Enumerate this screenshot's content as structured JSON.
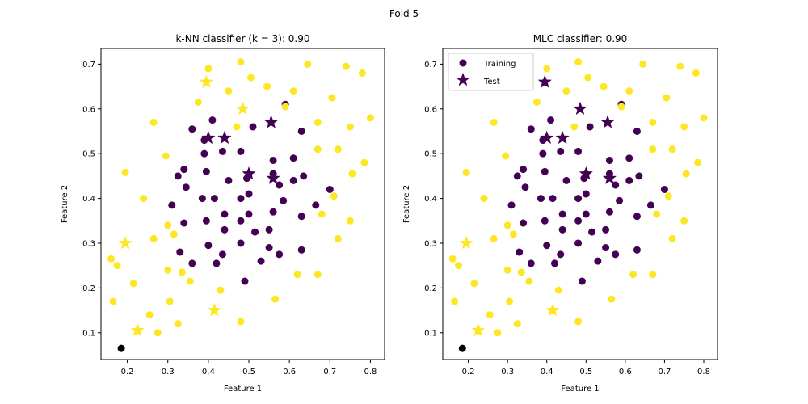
{
  "suptitle": "Fold 5",
  "colors": {
    "class0": "#440154",
    "class1": "#fde725"
  },
  "chart_data": [
    {
      "type": "scatter",
      "title": "k-NN classifier (k = 3): 0.90",
      "xlabel": "Feature 1",
      "ylabel": "Feature 2",
      "xlim": [
        0.135,
        0.835
      ],
      "ylim": [
        0.04,
        0.735
      ],
      "xticks": [
        "0.2",
        "0.3",
        "0.4",
        "0.5",
        "0.6",
        "0.7",
        "0.8"
      ],
      "yticks": [
        "0.1",
        "0.2",
        "0.3",
        "0.4",
        "0.5",
        "0.6",
        "0.7"
      ],
      "legend": null,
      "series": [
        {
          "name": "Training",
          "marker": "circle",
          "points": [
            [
              0.36,
              0.555
            ],
            [
              0.41,
              0.575
            ],
            [
              0.39,
              0.53
            ],
            [
              0.435,
              0.505
            ],
            [
              0.48,
              0.505
            ],
            [
              0.39,
              0.5
            ],
            [
              0.34,
              0.465
            ],
            [
              0.325,
              0.45
            ],
            [
              0.395,
              0.46
            ],
            [
              0.45,
              0.44
            ],
            [
              0.495,
              0.445
            ],
            [
              0.345,
              0.425
            ],
            [
              0.385,
              0.4
            ],
            [
              0.415,
              0.4
            ],
            [
              0.48,
              0.4
            ],
            [
              0.5,
              0.41
            ],
            [
              0.31,
              0.385
            ],
            [
              0.44,
              0.365
            ],
            [
              0.44,
              0.33
            ],
            [
              0.34,
              0.345
            ],
            [
              0.395,
              0.35
            ],
            [
              0.48,
              0.35
            ],
            [
              0.5,
              0.365
            ],
            [
              0.515,
              0.325
            ],
            [
              0.4,
              0.295
            ],
            [
              0.48,
              0.3
            ],
            [
              0.33,
              0.28
            ],
            [
              0.435,
              0.275
            ],
            [
              0.36,
              0.255
            ],
            [
              0.42,
              0.255
            ],
            [
              0.53,
              0.26
            ],
            [
              0.55,
              0.29
            ],
            [
              0.575,
              0.275
            ],
            [
              0.55,
              0.33
            ],
            [
              0.56,
              0.37
            ],
            [
              0.585,
              0.395
            ],
            [
              0.51,
              0.56
            ],
            [
              0.56,
              0.485
            ],
            [
              0.61,
              0.49
            ],
            [
              0.56,
              0.455
            ],
            [
              0.61,
              0.44
            ],
            [
              0.575,
              0.43
            ],
            [
              0.635,
              0.45
            ],
            [
              0.63,
              0.55
            ],
            [
              0.665,
              0.385
            ],
            [
              0.63,
              0.36
            ],
            [
              0.7,
              0.42
            ],
            [
              0.63,
              0.285
            ],
            [
              0.49,
              0.215
            ],
            [
              0.59,
              0.61
            ],
            [
              0.48,
              0.705
            ],
            [
              0.4,
              0.69
            ],
            [
              0.45,
              0.64
            ],
            [
              0.505,
              0.67
            ],
            [
              0.545,
              0.65
            ],
            [
              0.61,
              0.64
            ],
            [
              0.645,
              0.7
            ],
            [
              0.74,
              0.695
            ],
            [
              0.78,
              0.68
            ],
            [
              0.375,
              0.615
            ],
            [
              0.47,
              0.56
            ],
            [
              0.59,
              0.605
            ],
            [
              0.67,
              0.57
            ],
            [
              0.705,
              0.625
            ],
            [
              0.75,
              0.56
            ],
            [
              0.8,
              0.58
            ],
            [
              0.265,
              0.57
            ],
            [
              0.67,
              0.51
            ],
            [
              0.72,
              0.51
            ],
            [
              0.755,
              0.455
            ],
            [
              0.785,
              0.48
            ],
            [
              0.295,
              0.495
            ],
            [
              0.195,
              0.458
            ],
            [
              0.24,
              0.4
            ],
            [
              0.71,
              0.405
            ],
            [
              0.68,
              0.365
            ],
            [
              0.75,
              0.35
            ],
            [
              0.3,
              0.34
            ],
            [
              0.265,
              0.31
            ],
            [
              0.315,
              0.32
            ],
            [
              0.72,
              0.31
            ],
            [
              0.175,
              0.25
            ],
            [
              0.16,
              0.265
            ],
            [
              0.3,
              0.24
            ],
            [
              0.335,
              0.235
            ],
            [
              0.67,
              0.23
            ],
            [
              0.215,
              0.21
            ],
            [
              0.355,
              0.215
            ],
            [
              0.62,
              0.23
            ],
            [
              0.165,
              0.17
            ],
            [
              0.305,
              0.17
            ],
            [
              0.43,
              0.195
            ],
            [
              0.565,
              0.175
            ],
            [
              0.255,
              0.14
            ],
            [
              0.325,
              0.12
            ],
            [
              0.48,
              0.125
            ],
            [
              0.275,
              0.1
            ],
            [
              0.185,
              0.065
            ]
          ],
          "labels": [
            0,
            0,
            0,
            0,
            0,
            0,
            0,
            0,
            0,
            0,
            0,
            0,
            0,
            0,
            0,
            0,
            0,
            0,
            0,
            0,
            0,
            0,
            0,
            0,
            0,
            0,
            0,
            0,
            0,
            0,
            0,
            0,
            0,
            0,
            0,
            0,
            0,
            0,
            0,
            0,
            0,
            0,
            0,
            0,
            0,
            0,
            0,
            0,
            0,
            0,
            1,
            1,
            1,
            1,
            1,
            1,
            1,
            1,
            1,
            1,
            1,
            1,
            1,
            1,
            1,
            1,
            1,
            1,
            1,
            1,
            1,
            1,
            1,
            1,
            1,
            1,
            1,
            1,
            1,
            1,
            1,
            1,
            1,
            1,
            1,
            1,
            1,
            1,
            1,
            1,
            1,
            1,
            1,
            1,
            1,
            1,
            1
          ]
        },
        {
          "name": "Test",
          "marker": "star",
          "points": [
            [
              0.395,
              0.66
            ],
            [
              0.485,
              0.6
            ],
            [
              0.555,
              0.57
            ],
            [
              0.4,
              0.535
            ],
            [
              0.44,
              0.535
            ],
            [
              0.5,
              0.455
            ],
            [
              0.56,
              0.445
            ],
            [
              0.195,
              0.3
            ],
            [
              0.415,
              0.15
            ],
            [
              0.225,
              0.105
            ]
          ],
          "labels": [
            1,
            1,
            0,
            0,
            0,
            0,
            0,
            1,
            1,
            1
          ]
        }
      ]
    },
    {
      "type": "scatter",
      "title": "MLC classifier: 0.90",
      "xlabel": "Feature 1",
      "ylabel": "Feature 2",
      "xlim": [
        0.135,
        0.835
      ],
      "ylim": [
        0.04,
        0.735
      ],
      "xticks": [
        "0.2",
        "0.3",
        "0.4",
        "0.5",
        "0.6",
        "0.7",
        "0.8"
      ],
      "yticks": [
        "0.1",
        "0.2",
        "0.3",
        "0.4",
        "0.5",
        "0.6",
        "0.7"
      ],
      "legend": {
        "position": "upper-left",
        "entries": [
          "Training",
          "Test"
        ]
      },
      "series": [
        {
          "name": "Training",
          "marker": "circle",
          "points": [
            [
              0.36,
              0.555
            ],
            [
              0.41,
              0.575
            ],
            [
              0.39,
              0.53
            ],
            [
              0.435,
              0.505
            ],
            [
              0.48,
              0.505
            ],
            [
              0.39,
              0.5
            ],
            [
              0.34,
              0.465
            ],
            [
              0.325,
              0.45
            ],
            [
              0.395,
              0.46
            ],
            [
              0.45,
              0.44
            ],
            [
              0.495,
              0.445
            ],
            [
              0.345,
              0.425
            ],
            [
              0.385,
              0.4
            ],
            [
              0.415,
              0.4
            ],
            [
              0.48,
              0.4
            ],
            [
              0.5,
              0.41
            ],
            [
              0.31,
              0.385
            ],
            [
              0.44,
              0.365
            ],
            [
              0.44,
              0.33
            ],
            [
              0.34,
              0.345
            ],
            [
              0.395,
              0.35
            ],
            [
              0.48,
              0.35
            ],
            [
              0.5,
              0.365
            ],
            [
              0.515,
              0.325
            ],
            [
              0.4,
              0.295
            ],
            [
              0.48,
              0.3
            ],
            [
              0.33,
              0.28
            ],
            [
              0.435,
              0.275
            ],
            [
              0.36,
              0.255
            ],
            [
              0.42,
              0.255
            ],
            [
              0.53,
              0.26
            ],
            [
              0.55,
              0.29
            ],
            [
              0.575,
              0.275
            ],
            [
              0.55,
              0.33
            ],
            [
              0.56,
              0.37
            ],
            [
              0.585,
              0.395
            ],
            [
              0.51,
              0.56
            ],
            [
              0.56,
              0.485
            ],
            [
              0.61,
              0.49
            ],
            [
              0.56,
              0.455
            ],
            [
              0.61,
              0.44
            ],
            [
              0.575,
              0.43
            ],
            [
              0.635,
              0.45
            ],
            [
              0.63,
              0.55
            ],
            [
              0.665,
              0.385
            ],
            [
              0.63,
              0.36
            ],
            [
              0.7,
              0.42
            ],
            [
              0.63,
              0.285
            ],
            [
              0.49,
              0.215
            ],
            [
              0.59,
              0.61
            ],
            [
              0.48,
              0.705
            ],
            [
              0.4,
              0.69
            ],
            [
              0.45,
              0.64
            ],
            [
              0.505,
              0.67
            ],
            [
              0.545,
              0.65
            ],
            [
              0.61,
              0.64
            ],
            [
              0.645,
              0.7
            ],
            [
              0.74,
              0.695
            ],
            [
              0.78,
              0.68
            ],
            [
              0.375,
              0.615
            ],
            [
              0.47,
              0.56
            ],
            [
              0.59,
              0.605
            ],
            [
              0.67,
              0.57
            ],
            [
              0.705,
              0.625
            ],
            [
              0.75,
              0.56
            ],
            [
              0.8,
              0.58
            ],
            [
              0.265,
              0.57
            ],
            [
              0.67,
              0.51
            ],
            [
              0.72,
              0.51
            ],
            [
              0.755,
              0.455
            ],
            [
              0.785,
              0.48
            ],
            [
              0.295,
              0.495
            ],
            [
              0.195,
              0.458
            ],
            [
              0.24,
              0.4
            ],
            [
              0.71,
              0.405
            ],
            [
              0.68,
              0.365
            ],
            [
              0.75,
              0.35
            ],
            [
              0.3,
              0.34
            ],
            [
              0.265,
              0.31
            ],
            [
              0.315,
              0.32
            ],
            [
              0.72,
              0.31
            ],
            [
              0.175,
              0.25
            ],
            [
              0.16,
              0.265
            ],
            [
              0.3,
              0.24
            ],
            [
              0.335,
              0.235
            ],
            [
              0.67,
              0.23
            ],
            [
              0.215,
              0.21
            ],
            [
              0.355,
              0.215
            ],
            [
              0.62,
              0.23
            ],
            [
              0.165,
              0.17
            ],
            [
              0.305,
              0.17
            ],
            [
              0.43,
              0.195
            ],
            [
              0.565,
              0.175
            ],
            [
              0.255,
              0.14
            ],
            [
              0.325,
              0.12
            ],
            [
              0.48,
              0.125
            ],
            [
              0.275,
              0.1
            ],
            [
              0.185,
              0.065
            ]
          ],
          "labels": [
            0,
            0,
            0,
            0,
            0,
            0,
            0,
            0,
            0,
            0,
            0,
            0,
            0,
            0,
            0,
            0,
            0,
            0,
            0,
            0,
            0,
            0,
            0,
            0,
            0,
            0,
            0,
            0,
            0,
            0,
            0,
            0,
            0,
            0,
            0,
            0,
            0,
            0,
            0,
            0,
            0,
            0,
            0,
            0,
            0,
            0,
            0,
            0,
            0,
            0,
            1,
            1,
            1,
            1,
            1,
            1,
            1,
            1,
            1,
            1,
            1,
            1,
            1,
            1,
            1,
            1,
            1,
            1,
            1,
            1,
            1,
            1,
            1,
            1,
            1,
            1,
            1,
            1,
            1,
            1,
            1,
            1,
            1,
            1,
            1,
            1,
            1,
            1,
            1,
            1,
            1,
            1,
            1,
            1,
            1,
            1,
            1
          ]
        },
        {
          "name": "Test",
          "marker": "star",
          "points": [
            [
              0.395,
              0.66
            ],
            [
              0.485,
              0.6
            ],
            [
              0.555,
              0.57
            ],
            [
              0.4,
              0.535
            ],
            [
              0.44,
              0.535
            ],
            [
              0.5,
              0.455
            ],
            [
              0.56,
              0.445
            ],
            [
              0.195,
              0.3
            ],
            [
              0.415,
              0.15
            ],
            [
              0.225,
              0.105
            ]
          ],
          "labels": [
            0,
            0,
            0,
            0,
            0,
            0,
            0,
            1,
            1,
            1
          ]
        }
      ]
    }
  ]
}
